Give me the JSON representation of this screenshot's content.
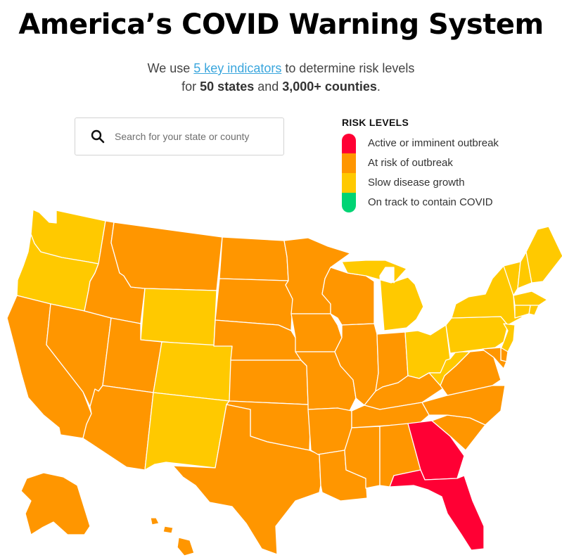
{
  "header": {
    "title": "America’s COVID Warning System",
    "subtitle_pre": "We use ",
    "subtitle_link": "5 key indicators",
    "subtitle_mid": " to determine risk levels",
    "subtitle_line2_pre": "for ",
    "subtitle_states": "50 states",
    "subtitle_and": " and ",
    "subtitle_counties": "3,000+ counties",
    "subtitle_end": "."
  },
  "search": {
    "placeholder": "Search for your state or county",
    "icon": "search-icon"
  },
  "legend": {
    "title": "RISK LEVELS",
    "levels": [
      {
        "id": "active",
        "label": "Active or imminent outbreak",
        "color": "#ff0034"
      },
      {
        "id": "risk",
        "label": "At risk of outbreak",
        "color": "#ff9600"
      },
      {
        "id": "slow",
        "label": "Slow disease growth",
        "color": "#ffc900"
      },
      {
        "id": "track",
        "label": "On track to contain COVID",
        "color": "#00d474"
      }
    ]
  },
  "map": {
    "states": [
      {
        "id": "WA",
        "level": "slow"
      },
      {
        "id": "OR",
        "level": "slow"
      },
      {
        "id": "CA",
        "level": "risk"
      },
      {
        "id": "NV",
        "level": "risk"
      },
      {
        "id": "ID",
        "level": "risk"
      },
      {
        "id": "MT",
        "level": "risk"
      },
      {
        "id": "WY",
        "level": "slow"
      },
      {
        "id": "UT",
        "level": "risk"
      },
      {
        "id": "AZ",
        "level": "risk"
      },
      {
        "id": "CO",
        "level": "slow"
      },
      {
        "id": "NM",
        "level": "slow"
      },
      {
        "id": "ND",
        "level": "risk"
      },
      {
        "id": "SD",
        "level": "risk"
      },
      {
        "id": "NE",
        "level": "risk"
      },
      {
        "id": "KS",
        "level": "risk"
      },
      {
        "id": "OK",
        "level": "risk"
      },
      {
        "id": "TX",
        "level": "risk"
      },
      {
        "id": "MN",
        "level": "risk"
      },
      {
        "id": "IA",
        "level": "risk"
      },
      {
        "id": "MO",
        "level": "risk"
      },
      {
        "id": "AR",
        "level": "risk"
      },
      {
        "id": "LA",
        "level": "risk"
      },
      {
        "id": "WI",
        "level": "risk"
      },
      {
        "id": "IL",
        "level": "risk"
      },
      {
        "id": "MI",
        "level": "slow"
      },
      {
        "id": "IN",
        "level": "risk"
      },
      {
        "id": "OH",
        "level": "slow"
      },
      {
        "id": "KY",
        "level": "risk"
      },
      {
        "id": "TN",
        "level": "risk"
      },
      {
        "id": "MS",
        "level": "risk"
      },
      {
        "id": "AL",
        "level": "risk"
      },
      {
        "id": "GA",
        "level": "active"
      },
      {
        "id": "FL",
        "level": "active"
      },
      {
        "id": "SC",
        "level": "risk"
      },
      {
        "id": "NC",
        "level": "risk"
      },
      {
        "id": "VA",
        "level": "risk"
      },
      {
        "id": "WV",
        "level": "slow"
      },
      {
        "id": "PA",
        "level": "slow"
      },
      {
        "id": "NY",
        "level": "slow"
      },
      {
        "id": "VT",
        "level": "slow"
      },
      {
        "id": "NH",
        "level": "slow"
      },
      {
        "id": "ME",
        "level": "slow"
      },
      {
        "id": "MA",
        "level": "slow"
      },
      {
        "id": "RI",
        "level": "slow"
      },
      {
        "id": "CT",
        "level": "slow"
      },
      {
        "id": "NJ",
        "level": "slow"
      },
      {
        "id": "DE",
        "level": "risk"
      },
      {
        "id": "MD",
        "level": "risk"
      },
      {
        "id": "AK",
        "level": "risk"
      },
      {
        "id": "HI",
        "level": "risk"
      }
    ]
  }
}
